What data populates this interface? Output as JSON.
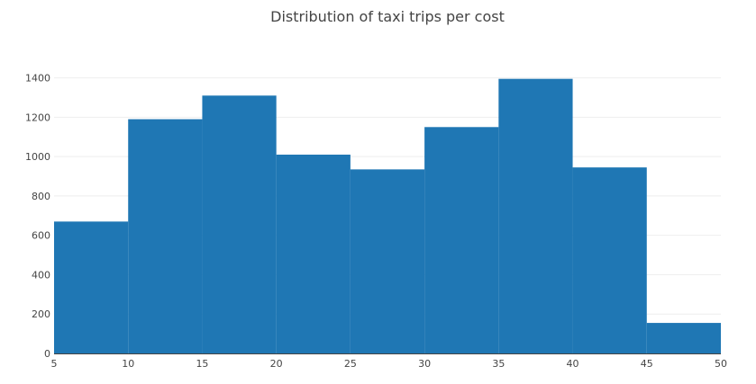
{
  "chart_data": {
    "type": "bar",
    "title": "Distribution of taxi trips per cost",
    "xlabel": "",
    "ylabel": "",
    "bins": [
      {
        "start": 5,
        "end": 10,
        "value": 670
      },
      {
        "start": 10,
        "end": 15,
        "value": 1190
      },
      {
        "start": 15,
        "end": 20,
        "value": 1310
      },
      {
        "start": 20,
        "end": 25,
        "value": 1010
      },
      {
        "start": 25,
        "end": 30,
        "value": 935
      },
      {
        "start": 30,
        "end": 35,
        "value": 1150
      },
      {
        "start": 35,
        "end": 40,
        "value": 1395
      },
      {
        "start": 40,
        "end": 45,
        "value": 945
      },
      {
        "start": 45,
        "end": 50,
        "value": 155
      }
    ],
    "x_ticks": [
      5,
      10,
      15,
      20,
      25,
      30,
      35,
      40,
      45,
      50
    ],
    "y_ticks": [
      0,
      200,
      400,
      600,
      800,
      1000,
      1200,
      1400
    ],
    "xlim": [
      5,
      50
    ],
    "ylim": [
      0,
      1400
    ],
    "grid": "horizontal",
    "legend": "none",
    "bar_color": "#1f77b4"
  }
}
